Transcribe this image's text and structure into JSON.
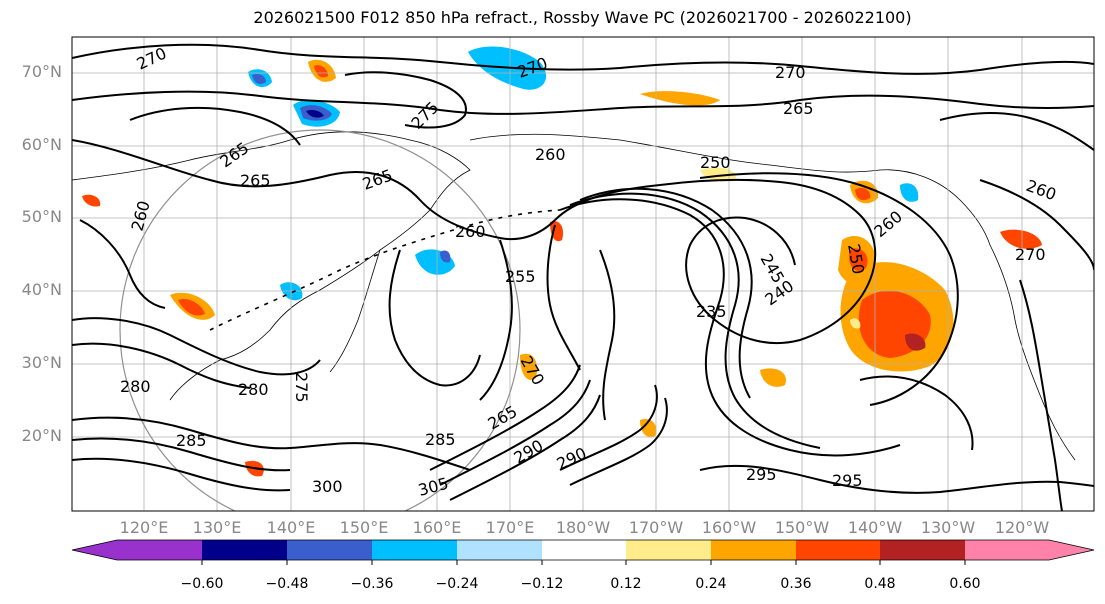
{
  "title": "2026021500 F012 850 hPa refract., Rossby Wave PC (2026021700 - 2026022100)",
  "latitude_labels": [
    "70°N",
    "60°N",
    "50°N",
    "40°N",
    "30°N",
    "20°N"
  ],
  "longitude_labels": [
    "120°E",
    "130°E",
    "140°E",
    "150°E",
    "160°E",
    "170°E",
    "180°W",
    "170°W",
    "160°W",
    "150°W",
    "140°W",
    "130°W",
    "120°W"
  ],
  "contour_labels": [
    "270",
    "270",
    "270",
    "275",
    "265",
    "265",
    "265",
    "260",
    "265",
    "260",
    "260",
    "250",
    "245",
    "240",
    "235",
    "250",
    "260",
    "270",
    "280",
    "275",
    "280",
    "285",
    "265",
    "270",
    "290",
    "295",
    "300",
    "305",
    "285",
    "295",
    "290",
    "260",
    "255"
  ],
  "colorbar": {
    "ticks": [
      "−0.60",
      "−0.48",
      "−0.36",
      "−0.24",
      "−0.12",
      "0.12",
      "0.24",
      "0.36",
      "0.48",
      "0.60"
    ],
    "colors": [
      "#9932cc",
      "#00008b",
      "#3a5fcd",
      "#00bfff",
      "#b0e2ff",
      "#ffffff",
      "#ffec8b",
      "#ffa500",
      "#ff4500",
      "#b22222",
      "#ff82ab"
    ],
    "extend_low_color": "#9932cc",
    "extend_high_color": "#ff82ab"
  }
}
